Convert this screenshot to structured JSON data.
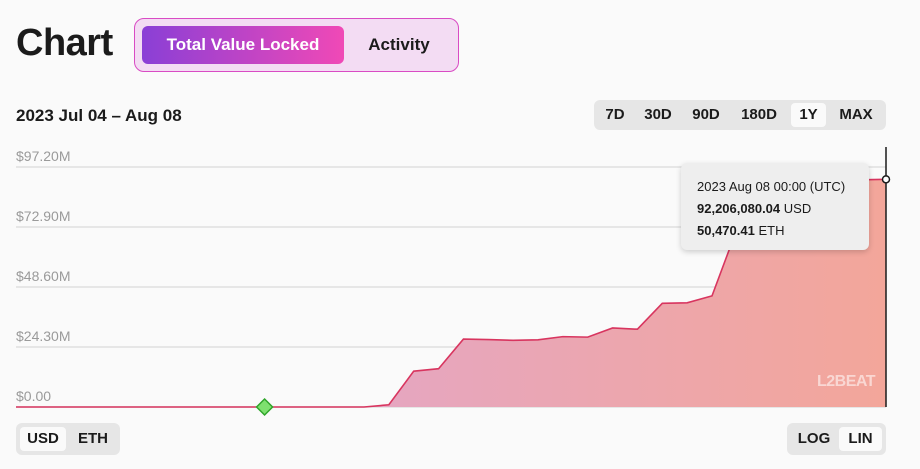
{
  "header": {
    "title": "Chart",
    "tabs": [
      {
        "label": "Total Value Locked",
        "active": true
      },
      {
        "label": "Activity",
        "active": false
      }
    ]
  },
  "date_range": "2023 Jul 04 – Aug 08",
  "range_options": [
    {
      "label": "7D",
      "active": false
    },
    {
      "label": "30D",
      "active": false
    },
    {
      "label": "90D",
      "active": false
    },
    {
      "label": "180D",
      "active": false
    },
    {
      "label": "1Y",
      "active": true
    },
    {
      "label": "MAX",
      "active": false
    }
  ],
  "tooltip": {
    "date": "2023 Aug 08 00:00 (UTC)",
    "usd_value": "92,206,080.04",
    "usd_unit": "USD",
    "eth_value": "50,470.41",
    "eth_unit": "ETH"
  },
  "watermark": "L2BEAT",
  "currency_toggle": [
    {
      "label": "USD",
      "active": true
    },
    {
      "label": "ETH",
      "active": false
    }
  ],
  "scale_toggle": [
    {
      "label": "LOG",
      "active": false
    },
    {
      "label": "LIN",
      "active": true
    }
  ],
  "colors": {
    "accent_start": "#8a3fd6",
    "accent_end": "#f049b6",
    "line": "#d8355f",
    "fill_left": "#dca6dc",
    "fill_right": "#f3a69a",
    "milestone": "#7ee06f"
  },
  "chart_data": {
    "type": "area",
    "x_range": [
      "2023 Jul 04",
      "2023 Aug 08"
    ],
    "y_tick_labels": [
      "$0.00",
      "$24.30M",
      "$48.60M",
      "$72.90M",
      "$97.20M"
    ],
    "y_ticks": [
      0,
      24.3,
      48.6,
      72.9,
      97.2
    ],
    "ylim": [
      0,
      97.2
    ],
    "y_unit": "M USD",
    "grid": true,
    "scale": "linear",
    "series": [
      {
        "values": [
          0,
          0,
          0,
          0,
          0,
          0,
          0,
          0,
          0,
          0,
          0,
          0,
          0,
          0,
          0,
          0.9,
          14.5,
          15.5,
          27.5,
          27.3,
          27.0,
          27.2,
          28.5,
          28.3,
          32.0,
          31.5,
          42.0,
          42.2,
          45.0,
          72.0,
          77.5,
          82.5,
          86.0,
          89.0,
          92.0,
          92.2
        ]
      }
    ],
    "milestone_index": 10,
    "highlight_index": 35
  }
}
